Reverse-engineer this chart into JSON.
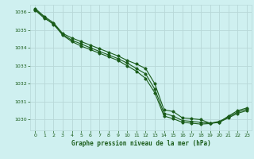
{
  "title": "Graphe pression niveau de la mer (hPa)",
  "background_color": "#cff0f0",
  "grid_color": "#b8d8d8",
  "line_color": "#1a5c1a",
  "xlim": [
    -0.5,
    23.5
  ],
  "ylim": [
    1029.4,
    1036.4
  ],
  "yticks": [
    1030,
    1031,
    1032,
    1033,
    1034,
    1035,
    1036
  ],
  "xticks": [
    0,
    1,
    2,
    3,
    4,
    5,
    6,
    7,
    8,
    9,
    10,
    11,
    12,
    13,
    14,
    15,
    16,
    17,
    18,
    19,
    20,
    21,
    22,
    23
  ],
  "series": [
    [
      1036.2,
      1035.75,
      1035.4,
      1034.8,
      1034.55,
      1034.35,
      1034.15,
      1033.95,
      1033.75,
      1033.55,
      1033.3,
      1033.1,
      1032.85,
      1032.0,
      1030.55,
      1030.45,
      1030.1,
      1030.05,
      1030.0,
      1029.8,
      1029.85,
      1030.2,
      1030.5,
      1030.65
    ],
    [
      1036.1,
      1035.65,
      1035.35,
      1034.7,
      1034.35,
      1034.1,
      1033.9,
      1033.7,
      1033.5,
      1033.3,
      1033.0,
      1032.7,
      1032.3,
      1031.5,
      1030.2,
      1030.05,
      1029.85,
      1029.8,
      1029.75,
      1029.78,
      1029.85,
      1030.1,
      1030.35,
      1030.5
    ],
    [
      1036.15,
      1035.7,
      1035.3,
      1034.75,
      1034.42,
      1034.22,
      1034.0,
      1033.8,
      1033.6,
      1033.4,
      1033.15,
      1032.85,
      1032.55,
      1031.7,
      1030.35,
      1030.2,
      1029.95,
      1029.9,
      1029.85,
      1029.8,
      1029.9,
      1030.15,
      1030.42,
      1030.58
    ]
  ]
}
